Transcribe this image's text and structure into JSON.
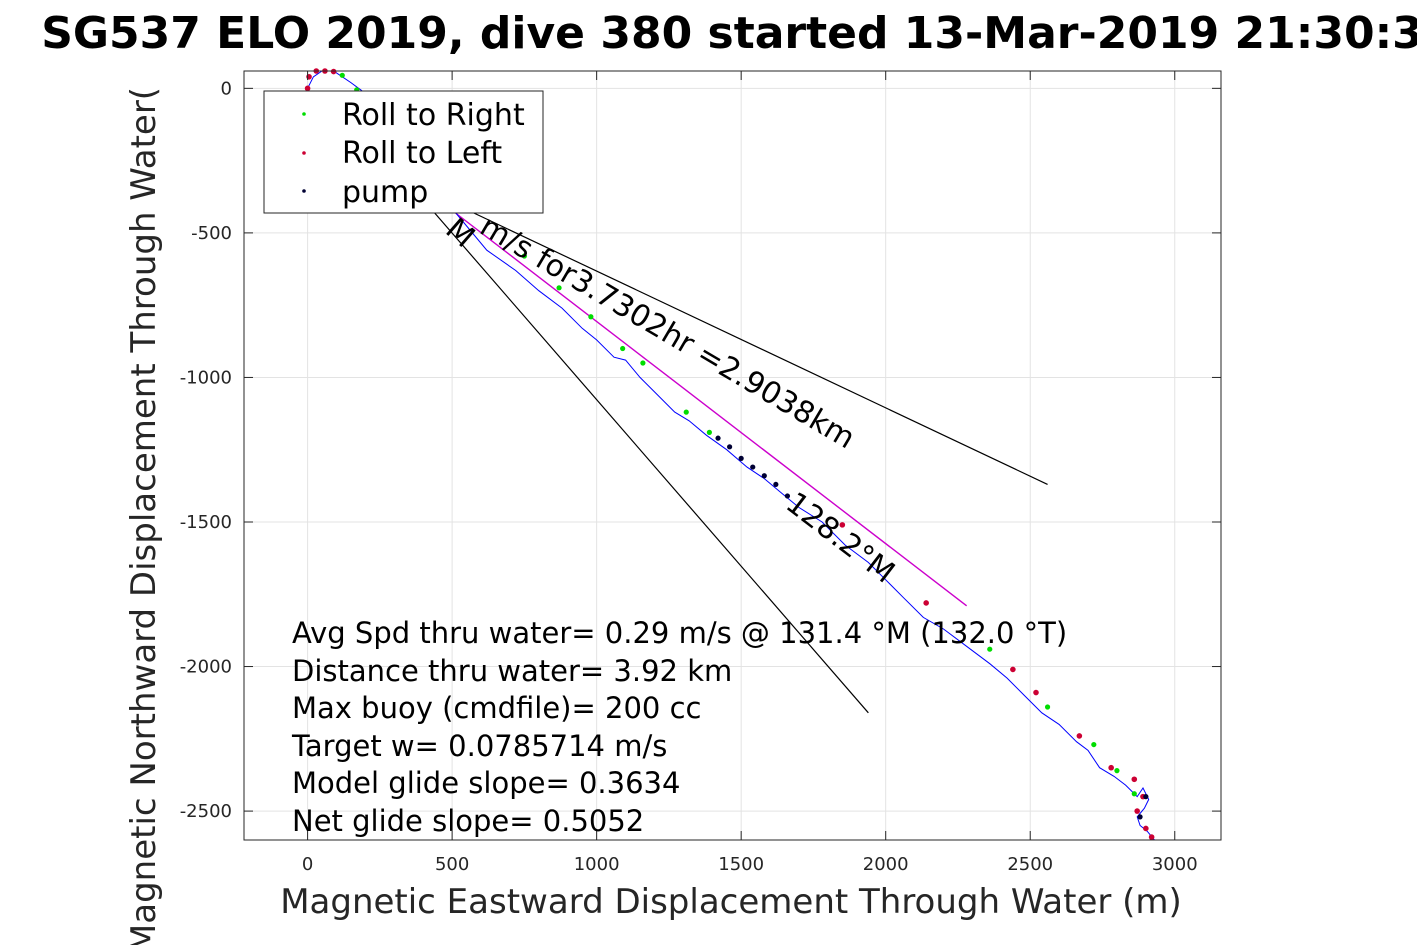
{
  "chart_data": {
    "type": "line",
    "title": "SG537 ELO 2019, dive 380 started 13-Mar-2019 21:30:3",
    "xlabel": "Magnetic Eastward Displacement Through Water (m)",
    "ylabel": "Magnetic Northward Displacement Through Water(",
    "xlim": [
      -220,
      3160
    ],
    "ylim": [
      -2600,
      60
    ],
    "xticks": [
      0,
      500,
      1000,
      1500,
      2000,
      2500,
      3000
    ],
    "yticks": [
      0,
      -500,
      -1000,
      -1500,
      -2000,
      -2500
    ],
    "grid": true,
    "legend": {
      "placement": "top-left",
      "entries": [
        {
          "label": "Roll to Right",
          "color": "#00dd00"
        },
        {
          "label": "Roll to Left",
          "color": "#cc0033"
        },
        {
          "label": "pump",
          "color": "#000033"
        }
      ]
    },
    "track": {
      "name": "track",
      "color": "#0000ff",
      "x": [
        0,
        20,
        50,
        90,
        120,
        150,
        190,
        250,
        330,
        420,
        520,
        620,
        720,
        800,
        880,
        950,
        1000,
        1060,
        1100,
        1150,
        1200,
        1270,
        1320,
        1380,
        1450,
        1520,
        1580,
        1640,
        1700,
        1780,
        1860,
        1940,
        2000,
        2060,
        2130,
        2200,
        2280,
        2360,
        2420,
        2480,
        2540,
        2600,
        2660,
        2700,
        2740,
        2790,
        2830,
        2870,
        2890,
        2910,
        2895,
        2870,
        2880,
        2905,
        2930
      ],
      "y": [
        0,
        40,
        60,
        60,
        40,
        20,
        -10,
        -60,
        -170,
        -310,
        -440,
        -560,
        -630,
        -700,
        -760,
        -830,
        -870,
        -930,
        -940,
        -1000,
        -1050,
        -1120,
        -1150,
        -1200,
        -1250,
        -1310,
        -1350,
        -1400,
        -1450,
        -1500,
        -1580,
        -1640,
        -1700,
        -1760,
        -1830,
        -1870,
        -1930,
        -1990,
        -2040,
        -2100,
        -2160,
        -2200,
        -2260,
        -2290,
        -2350,
        -2380,
        -2410,
        -2450,
        -2420,
        -2460,
        -2490,
        -2520,
        -2550,
        -2570,
        -2600
      ]
    },
    "roll_right_points": [
      [
        120,
        45
      ],
      [
        170,
        -5
      ],
      [
        750,
        -580
      ],
      [
        870,
        -690
      ],
      [
        980,
        -790
      ],
      [
        1090,
        -900
      ],
      [
        1160,
        -950
      ],
      [
        1310,
        -1120
      ],
      [
        1390,
        -1190
      ],
      [
        2360,
        -1940
      ],
      [
        2560,
        -2140
      ],
      [
        2720,
        -2270
      ],
      [
        2800,
        -2360
      ],
      [
        2860,
        -2440
      ]
    ],
    "roll_left_points": [
      [
        0,
        0
      ],
      [
        5,
        40
      ],
      [
        30,
        60
      ],
      [
        60,
        60
      ],
      [
        90,
        58
      ],
      [
        1850,
        -1510
      ],
      [
        2140,
        -1780
      ],
      [
        2440,
        -2010
      ],
      [
        2520,
        -2090
      ],
      [
        2670,
        -2240
      ],
      [
        2780,
        -2350
      ],
      [
        2860,
        -2390
      ],
      [
        2890,
        -2450
      ],
      [
        2870,
        -2500
      ],
      [
        2900,
        -2560
      ],
      [
        2920,
        -2590
      ]
    ],
    "pump_points": [
      [
        1420,
        -1210
      ],
      [
        1460,
        -1240
      ],
      [
        1500,
        -1280
      ],
      [
        1540,
        -1310
      ],
      [
        1580,
        -1340
      ],
      [
        1620,
        -1370
      ],
      [
        1660,
        -1410
      ],
      [
        2900,
        -2450
      ],
      [
        2880,
        -2520
      ]
    ],
    "lines": [
      {
        "name": "cone-upper",
        "color": "#000000",
        "x": [
          340,
          2560
        ],
        "y": [
          -320,
          -1370
        ]
      },
      {
        "name": "cone-lower",
        "color": "#000000",
        "x": [
          430,
          1940
        ],
        "y": [
          -420,
          -2160
        ]
      },
      {
        "name": "course",
        "color": "#cc00cc",
        "x": [
          380,
          2280
        ],
        "y": [
          -330,
          -1790
        ]
      }
    ],
    "annotations": {
      "course_text": "m/s for3.7302hr =2.9038km",
      "heading_text": "128.2°M",
      "m_text": "M"
    },
    "stats": [
      "Avg Spd thru water=  0.29 m/s @ 131.4 °M (132.0 °T)",
      "Distance thru water=  3.92 km",
      "Max buoy (cmdfile)= 200 cc",
      "Target w= 0.0785714 m/s",
      "Model glide slope= 0.3634",
      "Net glide slope= 0.5052"
    ]
  }
}
